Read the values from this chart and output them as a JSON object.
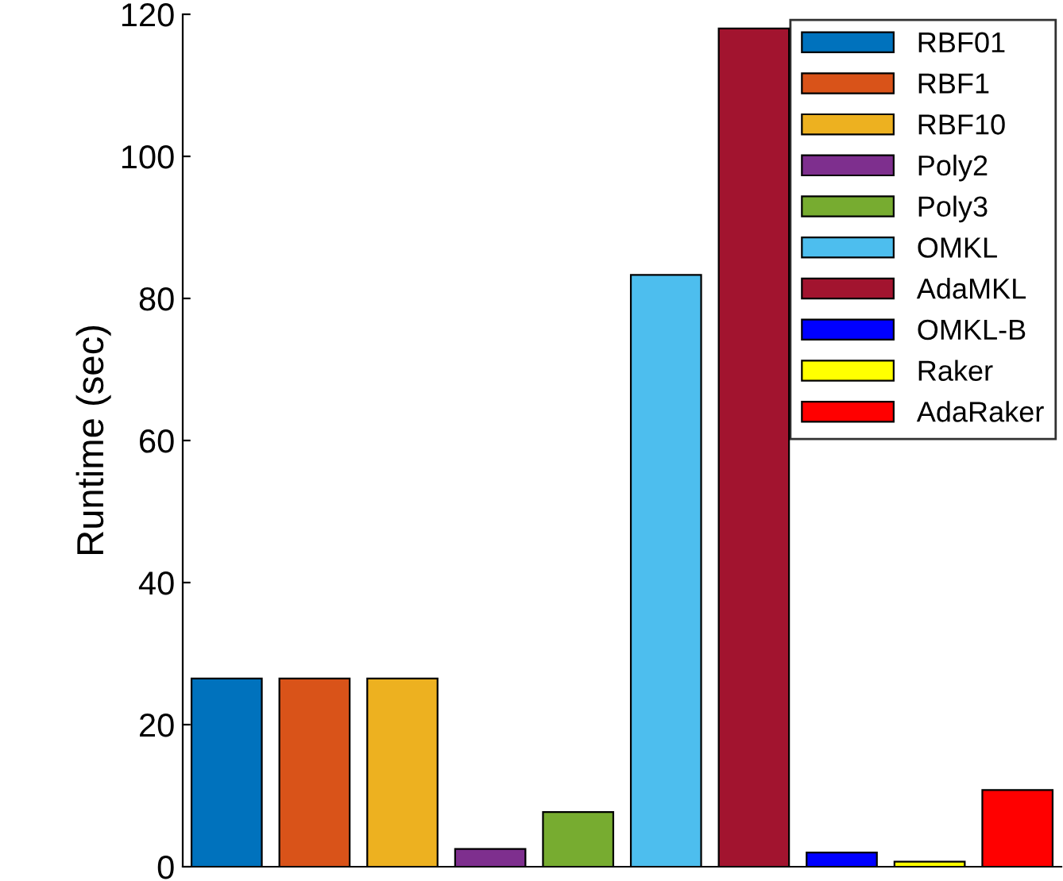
{
  "chart_data": {
    "type": "bar",
    "ylabel": "Runtime (sec)",
    "categories": [
      null
    ],
    "series": [
      {
        "name": "RBF01",
        "color": "#0072bd",
        "values": [
          26.5
        ]
      },
      {
        "name": "RBF1",
        "color": "#d95319",
        "values": [
          26.5
        ]
      },
      {
        "name": "RBF10",
        "color": "#edb120",
        "values": [
          26.5
        ]
      },
      {
        "name": "Poly2",
        "color": "#7e2f8e",
        "values": [
          2.5
        ]
      },
      {
        "name": "Poly3",
        "color": "#77ac30",
        "values": [
          7.7
        ]
      },
      {
        "name": "OMKL",
        "color": "#4dbeee",
        "values": [
          83.3
        ]
      },
      {
        "name": "AdaMKL",
        "color": "#a2142f",
        "values": [
          118
        ]
      },
      {
        "name": "OMKL-B",
        "color": "#0000ff",
        "values": [
          2.0
        ]
      },
      {
        "name": "Raker",
        "color": "#ffff00",
        "values": [
          0.7
        ]
      },
      {
        "name": "AdaRaker",
        "color": "#ff0000",
        "values": [
          10.8
        ]
      }
    ],
    "ylim": [
      0,
      120
    ],
    "yticks": [
      0,
      20,
      40,
      60,
      80,
      100,
      120
    ],
    "grid": false,
    "legend": "top right"
  }
}
